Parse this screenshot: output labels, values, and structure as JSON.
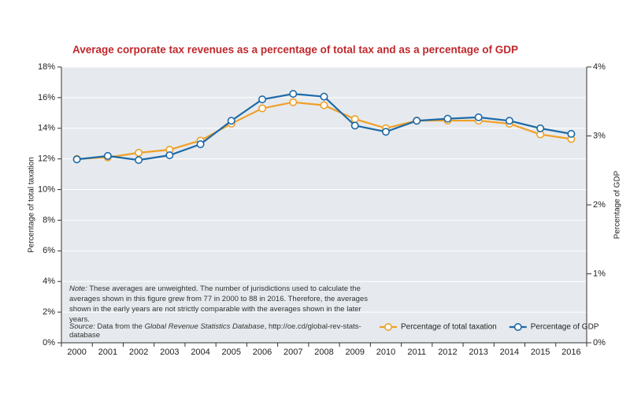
{
  "chart_data": {
    "type": "line",
    "title": "Average corporate tax revenues as a percentage of total tax and as a percentage of GDP",
    "categories": [
      "2000",
      "2001",
      "2002",
      "2003",
      "2004",
      "2005",
      "2006",
      "2007",
      "2008",
      "2009",
      "2010",
      "2011",
      "2012",
      "2013",
      "2014",
      "2015",
      "2016"
    ],
    "series": [
      {
        "name": "Percentage of total taxation",
        "color": "#f0a028",
        "axis": "y",
        "values": [
          12.0,
          12.1,
          12.4,
          12.6,
          13.2,
          14.3,
          15.3,
          15.7,
          15.5,
          14.6,
          14.0,
          14.5,
          14.5,
          14.5,
          14.3,
          13.6,
          13.3
        ]
      },
      {
        "name": "Percentage of GDP",
        "color": "#1f6aa8",
        "axis": "y2",
        "values": [
          2.66,
          2.71,
          2.65,
          2.72,
          2.88,
          3.22,
          3.53,
          3.61,
          3.57,
          3.15,
          3.06,
          3.22,
          3.25,
          3.27,
          3.22,
          3.11,
          3.03
        ]
      }
    ],
    "ylabel": "Percentage of total taxation",
    "y2label": "Percentage of GDP",
    "ylim": [
      0,
      18
    ],
    "yticks": [
      {
        "value": 0,
        "label": "0%"
      },
      {
        "value": 2,
        "label": "2%"
      },
      {
        "value": 4,
        "label": "4%"
      },
      {
        "value": 6,
        "label": "6%"
      },
      {
        "value": 8,
        "label": "8%"
      },
      {
        "value": 10,
        "label": "10%"
      },
      {
        "value": 12,
        "label": "12%"
      },
      {
        "value": 14,
        "label": "14%"
      },
      {
        "value": 16,
        "label": "16%"
      },
      {
        "value": 18,
        "label": "18%"
      }
    ],
    "y2lim": [
      0,
      4
    ],
    "y2ticks": [
      {
        "value": 0,
        "label": "0%"
      },
      {
        "value": 1,
        "label": "1%"
      },
      {
        "value": 2,
        "label": "2%"
      },
      {
        "value": 3,
        "label": "3%"
      },
      {
        "value": 4,
        "label": "4%"
      }
    ],
    "grid": true,
    "legend": "lower right",
    "note": {
      "label": "Note:",
      "text": "These averages are unweighted. The number of jurisdictions used to calculate the averages shown in this figure grew from 77 in 2000 to 88 in 2016. Therefore, the averages shown in the early years are not strictly comparable with the averages shown in the later years."
    },
    "source": {
      "label": "Source:",
      "prefix": "Data from the",
      "database": "Global Revenue Statistics Database",
      "suffix": ", http://oe.cd/global-rev-stats-database"
    }
  }
}
